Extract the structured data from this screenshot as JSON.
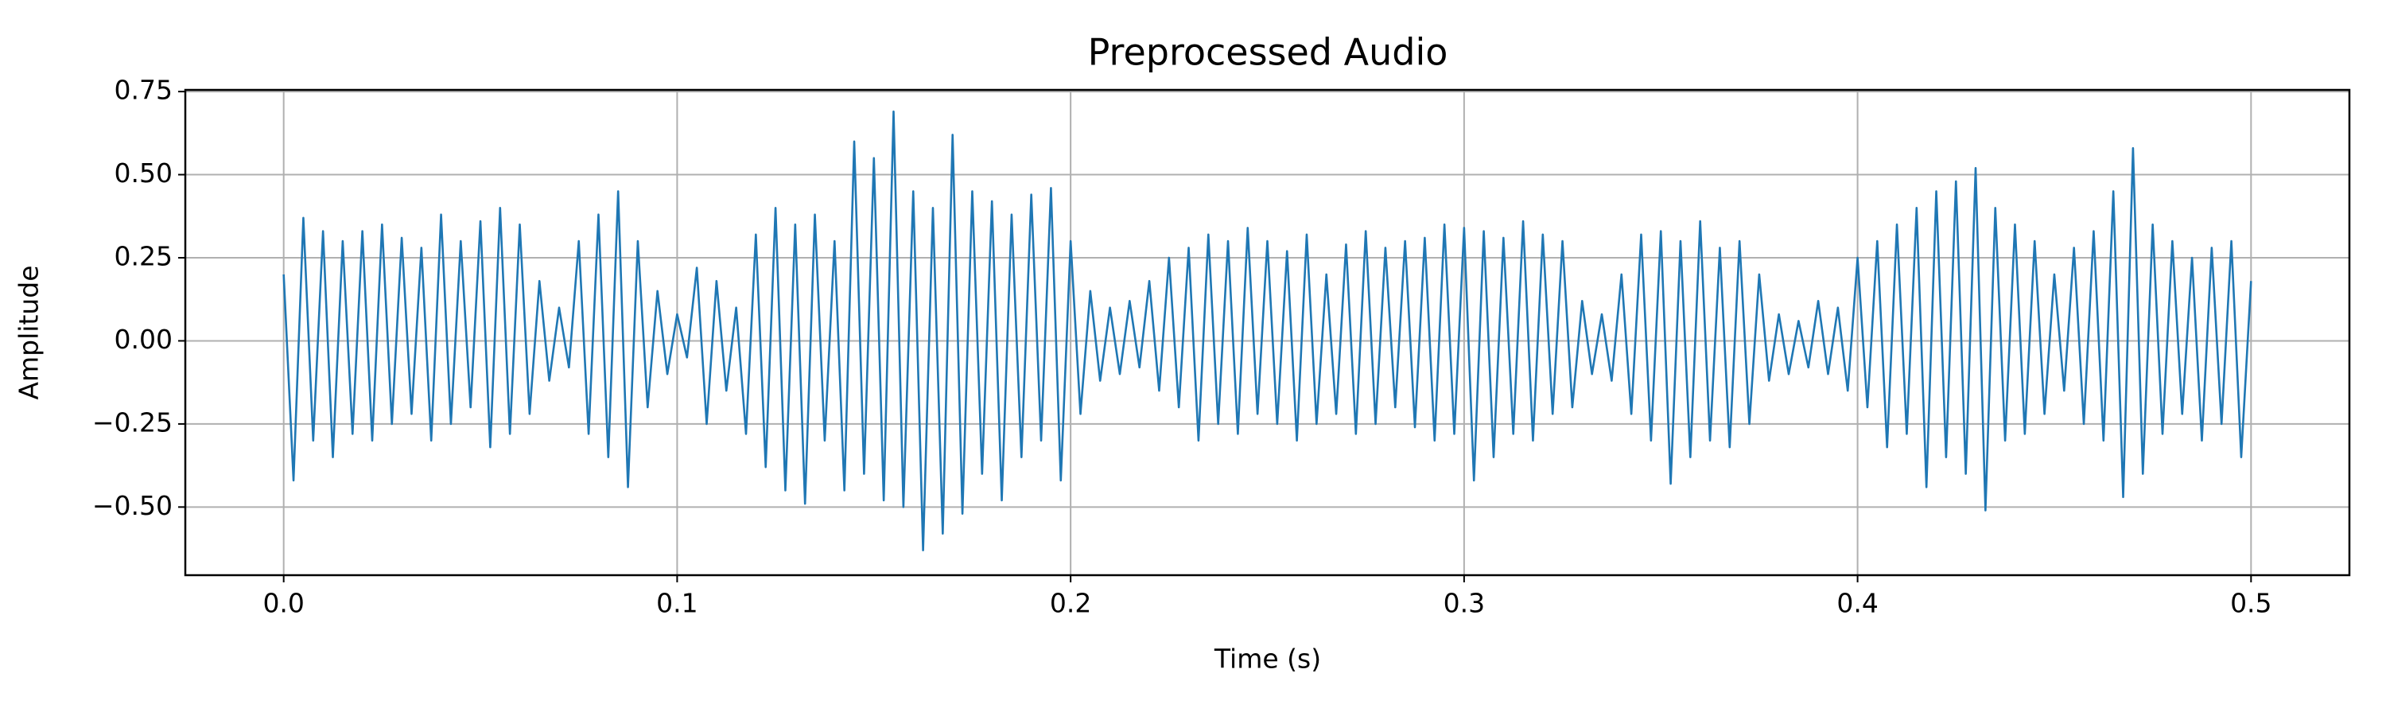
{
  "chart_data": {
    "type": "line",
    "title": "Preprocessed Audio",
    "x_label": "Time (s)",
    "y_label": "Amplitude",
    "xlim": [
      -0.025,
      0.525
    ],
    "ylim": [
      -0.705,
      0.755
    ],
    "grid": true,
    "xticks": [
      {
        "value": 0,
        "label": "0.0"
      },
      {
        "value": 0.1,
        "label": "0.1"
      },
      {
        "value": 0.2,
        "label": "0.2"
      },
      {
        "value": 0.3,
        "label": "0.3"
      },
      {
        "value": 0.4,
        "label": "0.4"
      },
      {
        "value": 0.5,
        "label": "0.5"
      }
    ],
    "yticks": [
      {
        "value": -0.5,
        "label": "−0.50"
      },
      {
        "value": -0.25,
        "label": "−0.25"
      },
      {
        "value": 0,
        "label": "0.00"
      },
      {
        "value": 0.25,
        "label": "0.25"
      },
      {
        "value": 0.5,
        "label": "0.50"
      },
      {
        "value": 0.75,
        "label": "0.75"
      }
    ],
    "x": [
      0,
      0.0025,
      0.005,
      0.0075,
      0.01,
      0.0125,
      0.015,
      0.0175,
      0.02,
      0.0225,
      0.025,
      0.0275,
      0.03,
      0.0325,
      0.035,
      0.0375,
      0.04,
      0.0425,
      0.045,
      0.0475,
      0.05,
      0.0525,
      0.055,
      0.0575,
      0.06,
      0.0625,
      0.065,
      0.0675,
      0.07,
      0.0725,
      0.075,
      0.0775,
      0.08,
      0.0825,
      0.085,
      0.0875,
      0.09,
      0.0925,
      0.095,
      0.0975,
      0.1,
      0.1025,
      0.105,
      0.1075,
      0.11,
      0.1125,
      0.115,
      0.1175,
      0.12,
      0.1225,
      0.125,
      0.1275,
      0.13,
      0.1325,
      0.135,
      0.1375,
      0.14,
      0.1425,
      0.145,
      0.1475,
      0.15,
      0.1525,
      0.155,
      0.1575,
      0.16,
      0.1625,
      0.165,
      0.1675,
      0.17,
      0.1725,
      0.175,
      0.1775,
      0.18,
      0.1825,
      0.185,
      0.1875,
      0.19,
      0.1925,
      0.195,
      0.1975,
      0.2,
      0.2025,
      0.205,
      0.2075,
      0.21,
      0.2125,
      0.215,
      0.2175,
      0.22,
      0.2225,
      0.225,
      0.2275,
      0.23,
      0.2325,
      0.235,
      0.2375,
      0.24,
      0.2425,
      0.245,
      0.2475,
      0.25,
      0.2525,
      0.255,
      0.2575,
      0.26,
      0.2625,
      0.265,
      0.2675,
      0.27,
      0.2725,
      0.275,
      0.2775,
      0.28,
      0.2825,
      0.285,
      0.2875,
      0.29,
      0.2925,
      0.295,
      0.2975,
      0.3,
      0.3025,
      0.305,
      0.3075,
      0.31,
      0.3125,
      0.315,
      0.3175,
      0.32,
      0.3225,
      0.325,
      0.3275,
      0.33,
      0.3325,
      0.335,
      0.3375,
      0.34,
      0.3425,
      0.345,
      0.3475,
      0.35,
      0.3525,
      0.355,
      0.3575,
      0.36,
      0.3625,
      0.365,
      0.3675,
      0.37,
      0.3725,
      0.375,
      0.3775,
      0.38,
      0.3825,
      0.385,
      0.3875,
      0.39,
      0.3925,
      0.395,
      0.3975,
      0.4,
      0.4025,
      0.405,
      0.4075,
      0.41,
      0.4125,
      0.415,
      0.4175,
      0.42,
      0.4225,
      0.425,
      0.4275,
      0.43,
      0.4325,
      0.435,
      0.4375,
      0.44,
      0.4425,
      0.445,
      0.4475,
      0.45,
      0.4525,
      0.455,
      0.4575,
      0.46,
      0.4625,
      0.465,
      0.4675,
      0.47,
      0.4725,
      0.475,
      0.4775,
      0.48,
      0.4825,
      0.485,
      0.4875,
      0.49,
      0.4925,
      0.495,
      0.4975,
      0.5
    ],
    "series": [
      {
        "color": "#1f77b4",
        "values": [
          0.2,
          -0.42,
          0.37,
          -0.3,
          0.33,
          -0.35,
          0.3,
          -0.28,
          0.33,
          -0.3,
          0.35,
          -0.25,
          0.31,
          -0.22,
          0.28,
          -0.3,
          0.38,
          -0.25,
          0.3,
          -0.2,
          0.36,
          -0.32,
          0.4,
          -0.28,
          0.35,
          -0.22,
          0.18,
          -0.12,
          0.1,
          -0.08,
          0.3,
          -0.28,
          0.38,
          -0.35,
          0.45,
          -0.44,
          0.3,
          -0.2,
          0.15,
          -0.1,
          0.08,
          -0.05,
          0.22,
          -0.25,
          0.18,
          -0.15,
          0.1,
          -0.28,
          0.32,
          -0.38,
          0.4,
          -0.45,
          0.35,
          -0.49,
          0.38,
          -0.3,
          0.3,
          -0.45,
          0.6,
          -0.4,
          0.55,
          -0.48,
          0.69,
          -0.5,
          0.45,
          -0.63,
          0.4,
          -0.58,
          0.62,
          -0.52,
          0.45,
          -0.4,
          0.42,
          -0.48,
          0.38,
          -0.35,
          0.44,
          -0.3,
          0.46,
          -0.42,
          0.3,
          -0.22,
          0.15,
          -0.12,
          0.1,
          -0.1,
          0.12,
          -0.08,
          0.18,
          -0.15,
          0.25,
          -0.2,
          0.28,
          -0.3,
          0.32,
          -0.25,
          0.3,
          -0.28,
          0.34,
          -0.22,
          0.3,
          -0.25,
          0.27,
          -0.3,
          0.32,
          -0.25,
          0.2,
          -0.22,
          0.29,
          -0.28,
          0.33,
          -0.25,
          0.28,
          -0.2,
          0.3,
          -0.26,
          0.31,
          -0.3,
          0.35,
          -0.28,
          0.34,
          -0.42,
          0.33,
          -0.35,
          0.31,
          -0.28,
          0.36,
          -0.3,
          0.32,
          -0.22,
          0.3,
          -0.2,
          0.12,
          -0.1,
          0.08,
          -0.12,
          0.2,
          -0.22,
          0.32,
          -0.3,
          0.33,
          -0.43,
          0.3,
          -0.35,
          0.36,
          -0.3,
          0.28,
          -0.32,
          0.3,
          -0.25,
          0.2,
          -0.12,
          0.08,
          -0.1,
          0.06,
          -0.08,
          0.12,
          -0.1,
          0.1,
          -0.15,
          0.25,
          -0.2,
          0.3,
          -0.32,
          0.35,
          -0.28,
          0.4,
          -0.44,
          0.45,
          -0.35,
          0.48,
          -0.4,
          0.52,
          -0.51,
          0.4,
          -0.3,
          0.35,
          -0.28,
          0.3,
          -0.22,
          0.2,
          -0.15,
          0.28,
          -0.25,
          0.33,
          -0.3,
          0.45,
          -0.47,
          0.58,
          -0.4,
          0.35,
          -0.28,
          0.3,
          -0.22,
          0.25,
          -0.3,
          0.28,
          -0.25,
          0.3,
          -0.35,
          0.18
        ]
      }
    ]
  }
}
